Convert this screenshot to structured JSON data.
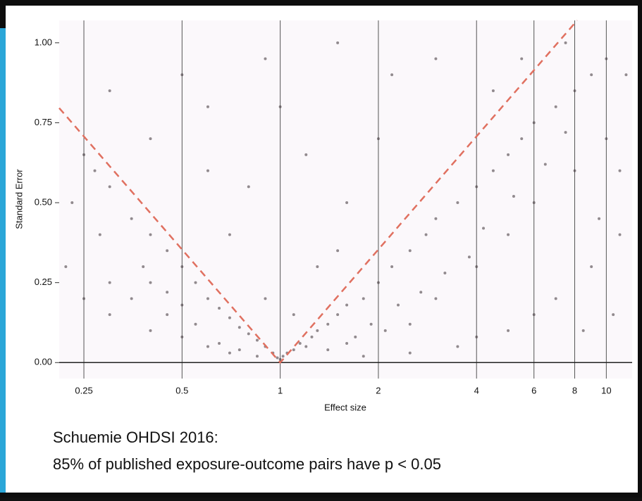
{
  "chart_data": {
    "type": "scatter",
    "x_label": "Effect size",
    "y_label": "Standard Error",
    "xlog": true,
    "xlim": [
      0.21,
      12
    ],
    "ylim": [
      -0.05,
      1.07
    ],
    "xticks": [
      0.25,
      0.5,
      1,
      2,
      4,
      6,
      8,
      10
    ],
    "yticks": [
      {
        "value": 0,
        "label": "0.00"
      },
      {
        "value": 0.25,
        "label": "0.25"
      },
      {
        "value": 0.5,
        "label": "0.50"
      },
      {
        "value": 0.75,
        "label": "0.75"
      },
      {
        "value": 1,
        "label": "1.00"
      }
    ],
    "grid": true,
    "color": "#3a3035",
    "x": [
      1.0,
      1.02,
      0.98,
      1.05,
      0.95,
      1.1,
      0.9,
      1.15,
      0.85,
      1.2,
      1.25,
      0.8,
      1.3,
      0.75,
      1.4,
      0.7,
      1.5,
      0.65,
      1.6,
      0.6,
      1.8,
      0.55,
      2.0,
      0.5,
      2.2,
      0.45,
      2.5,
      0.4,
      2.8,
      0.35,
      3.0,
      0.3,
      3.5,
      0.27,
      4.0,
      4.5,
      5.0,
      5.5,
      6.0,
      7.0,
      8.0,
      9.0,
      10,
      1.1,
      0.9,
      1.3,
      0.7,
      1.6,
      0.6,
      2.0,
      1.0,
      0.5,
      3.0,
      0.3,
      1.2,
      0.8,
      1.5,
      2.5,
      3.0,
      4.0,
      5.0,
      6.0,
      8.0,
      10,
      11,
      9,
      7,
      6,
      5,
      4,
      3.5,
      2.5,
      1.8,
      0.7,
      0.6,
      0.5,
      0.4,
      0.3,
      0.25,
      0.22,
      0.3,
      0.35,
      0.45,
      0.4,
      0.28,
      0.23,
      0.25,
      0.4,
      0.6,
      0.9,
      1.5,
      2.2,
      4.5,
      5.5,
      7.5,
      11.5,
      10.5,
      8.5,
      11,
      9.5,
      1.7,
      2.1,
      1.4,
      1.6,
      1.9,
      2.3,
      2.7,
      3.2,
      3.8,
      4.2,
      5.2,
      6.5,
      7.5,
      0.85,
      0.75,
      0.65,
      0.55,
      0.5,
      0.45,
      0.38
    ],
    "y": [
      0.01,
      0.02,
      0.015,
      0.03,
      0.03,
      0.04,
      0.05,
      0.06,
      0.07,
      0.05,
      0.08,
      0.09,
      0.1,
      0.11,
      0.12,
      0.14,
      0.15,
      0.17,
      0.18,
      0.2,
      0.2,
      0.25,
      0.25,
      0.3,
      0.3,
      0.35,
      0.35,
      0.4,
      0.4,
      0.45,
      0.45,
      0.55,
      0.5,
      0.6,
      0.55,
      0.6,
      0.65,
      0.7,
      0.75,
      0.8,
      0.85,
      0.9,
      0.95,
      0.15,
      0.2,
      0.3,
      0.4,
      0.5,
      0.6,
      0.7,
      0.8,
      0.9,
      0.95,
      0.85,
      0.65,
      0.55,
      0.35,
      0.12,
      0.2,
      0.3,
      0.4,
      0.5,
      0.6,
      0.7,
      0.4,
      0.3,
      0.2,
      0.15,
      0.1,
      0.08,
      0.05,
      0.03,
      0.02,
      0.03,
      0.05,
      0.08,
      0.1,
      0.15,
      0.2,
      0.3,
      0.25,
      0.2,
      0.15,
      0.25,
      0.4,
      0.5,
      0.65,
      0.7,
      0.8,
      0.95,
      1.0,
      0.9,
      0.85,
      0.95,
      1.0,
      0.9,
      0.15,
      0.1,
      0.6,
      0.45,
      0.08,
      0.1,
      0.04,
      0.06,
      0.12,
      0.18,
      0.22,
      0.28,
      0.33,
      0.42,
      0.52,
      0.62,
      0.72,
      0.02,
      0.04,
      0.06,
      0.12,
      0.18,
      0.22,
      0.3
    ],
    "reference_line": {
      "color": "#e07060",
      "x": [
        0.21,
        1,
        8.14
      ],
      "y": [
        0.796,
        0,
        1.07
      ]
    },
    "annotations": [
      "Schuemie OHDSI 2016:",
      "85% of published exposure-outcome pairs have p < 0.05"
    ]
  }
}
